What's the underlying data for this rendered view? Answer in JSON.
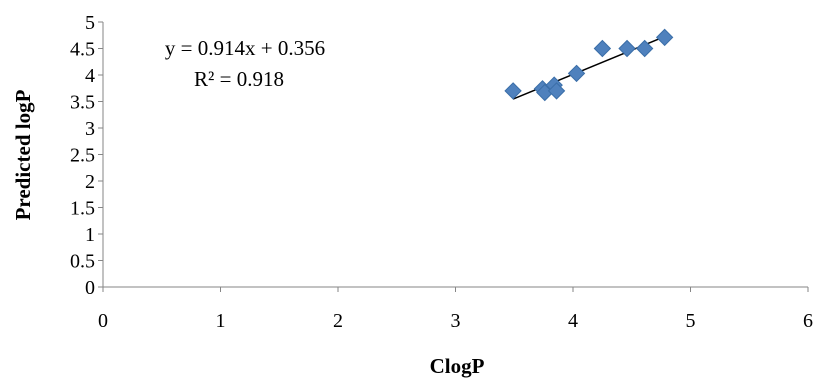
{
  "chart_data": {
    "type": "scatter",
    "title": "",
    "xlabel": "ClogP",
    "ylabel": "Predicted logP",
    "xlim": [
      0,
      6
    ],
    "ylim": [
      0,
      5
    ],
    "x_ticks": [
      "0",
      "1",
      "2",
      "3",
      "4",
      "5",
      "6"
    ],
    "y_ticks": [
      "0",
      "0.5",
      "1",
      "1.5",
      "2",
      "2.5",
      "3",
      "3.5",
      "4",
      "4.5",
      "5"
    ],
    "grid": false,
    "marker": "diamond",
    "marker_color": "#4F81BD",
    "points": [
      {
        "x": 3.49,
        "y": 3.7
      },
      {
        "x": 3.74,
        "y": 3.74
      },
      {
        "x": 3.76,
        "y": 3.67
      },
      {
        "x": 3.84,
        "y": 3.81
      },
      {
        "x": 3.86,
        "y": 3.7
      },
      {
        "x": 4.03,
        "y": 4.03
      },
      {
        "x": 4.25,
        "y": 4.5
      },
      {
        "x": 4.46,
        "y": 4.5
      },
      {
        "x": 4.61,
        "y": 4.5
      },
      {
        "x": 4.78,
        "y": 4.71
      }
    ],
    "trendline": {
      "slope": 0.914,
      "intercept": 0.356,
      "x_range": [
        3.49,
        4.78
      ]
    },
    "annotations": {
      "equation": "y = 0.914x + 0.356",
      "r_squared": "R² = 0.918"
    }
  }
}
